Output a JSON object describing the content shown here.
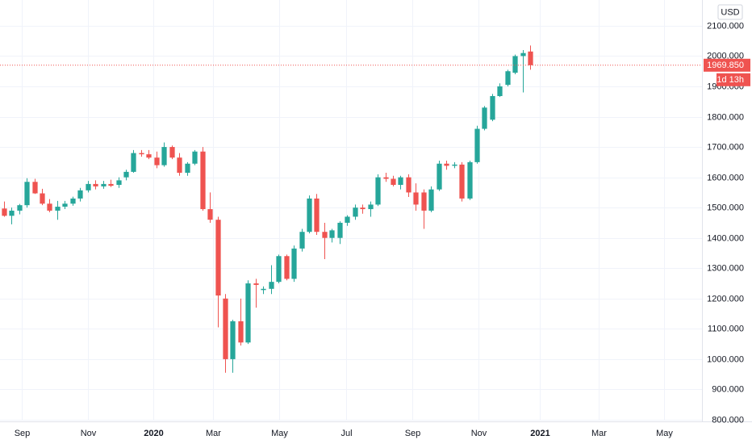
{
  "chart_data": {
    "type": "candlestick",
    "currency": "USD",
    "countdown": "1d 13h",
    "up_color": "#26a69a",
    "down_color": "#ef5350",
    "grid": true,
    "x": [
      0,
      1,
      2,
      3,
      4,
      5,
      6,
      7,
      8,
      9,
      10,
      11,
      12,
      13,
      14,
      15,
      16,
      17,
      18,
      19,
      20,
      21,
      22,
      23,
      24,
      25,
      26,
      27,
      28,
      29,
      30,
      31,
      32,
      33,
      34,
      35,
      36,
      37,
      38,
      39,
      40,
      41,
      42,
      43,
      44,
      45,
      46,
      47,
      48,
      49,
      50,
      51,
      52,
      53,
      54,
      55,
      56,
      57,
      58,
      59,
      60,
      61,
      62,
      63,
      64,
      65,
      66,
      67,
      68,
      69
    ],
    "open": [
      1497,
      1473,
      1490,
      1508,
      1585,
      1547,
      1513,
      1490,
      1503,
      1513,
      1530,
      1557,
      1578,
      1570,
      1578,
      1575,
      1600,
      1618,
      1680,
      1676,
      1665,
      1640,
      1700,
      1665,
      1615,
      1645,
      1685,
      1495,
      1460,
      1200,
      1000,
      1125,
      1055,
      1250,
      1228,
      1232,
      1255,
      1340,
      1265,
      1365,
      1420,
      1530,
      1420,
      1400,
      1400,
      1450,
      1470,
      1500,
      1495,
      1510,
      1600,
      1595,
      1575,
      1600,
      1550,
      1550,
      1490,
      1560,
      1645,
      1638,
      1642,
      1530,
      1650,
      1760,
      1790,
      1868,
      1905,
      1945,
      2000,
      2015
    ],
    "high": [
      1520,
      1500,
      1512,
      1597,
      1595,
      1562,
      1528,
      1522,
      1522,
      1536,
      1565,
      1588,
      1590,
      1588,
      1592,
      1600,
      1625,
      1690,
      1690,
      1690,
      1685,
      1715,
      1705,
      1680,
      1650,
      1690,
      1700,
      1550,
      1470,
      1215,
      1130,
      1200,
      1260,
      1265,
      1240,
      1310,
      1345,
      1345,
      1375,
      1430,
      1540,
      1545,
      1450,
      1430,
      1455,
      1475,
      1510,
      1510,
      1520,
      1610,
      1615,
      1605,
      1605,
      1610,
      1580,
      1560,
      1570,
      1655,
      1655,
      1650,
      1650,
      1655,
      1770,
      1835,
      1875,
      1910,
      1955,
      2005,
      2020,
      2035
    ],
    "low": [
      1470,
      1445,
      1478,
      1500,
      1545,
      1508,
      1485,
      1460,
      1495,
      1506,
      1520,
      1550,
      1560,
      1562,
      1568,
      1565,
      1590,
      1615,
      1668,
      1660,
      1630,
      1635,
      1660,
      1605,
      1605,
      1640,
      1490,
      1450,
      1105,
      955,
      955,
      1045,
      1050,
      1170,
      1215,
      1215,
      1250,
      1260,
      1255,
      1355,
      1415,
      1410,
      1330,
      1385,
      1380,
      1440,
      1460,
      1480,
      1470,
      1505,
      1585,
      1570,
      1560,
      1535,
      1490,
      1430,
      1485,
      1555,
      1625,
      1630,
      1520,
      1525,
      1645,
      1755,
      1785,
      1865,
      1900,
      1940,
      1880,
      1955
    ],
    "close": [
      1473,
      1490,
      1508,
      1585,
      1547,
      1513,
      1490,
      1503,
      1513,
      1530,
      1557,
      1578,
      1570,
      1578,
      1572,
      1590,
      1618,
      1680,
      1676,
      1665,
      1640,
      1700,
      1665,
      1615,
      1645,
      1685,
      1495,
      1460,
      1210,
      1000,
      1125,
      1055,
      1250,
      1245,
      1232,
      1255,
      1340,
      1265,
      1365,
      1420,
      1530,
      1420,
      1400,
      1425,
      1450,
      1470,
      1500,
      1495,
      1510,
      1600,
      1595,
      1575,
      1600,
      1550,
      1510,
      1490,
      1560,
      1645,
      1638,
      1642,
      1530,
      1650,
      1760,
      1830,
      1868,
      1900,
      1950,
      2000,
      2010,
      1969.85
    ],
    "last_price": {
      "value": 1969.85,
      "label": "1969.850"
    },
    "xlim": [
      -0.5,
      91.5
    ],
    "xticks": [
      {
        "value": 2.35,
        "label": "Sep"
      },
      {
        "value": 11.0,
        "label": "Nov"
      },
      {
        "value": 19.6,
        "label": "2020"
      },
      {
        "value": 27.4,
        "label": "Mar"
      },
      {
        "value": 36.1,
        "label": "May"
      },
      {
        "value": 44.9,
        "label": "Jul"
      },
      {
        "value": 53.5,
        "label": "Sep"
      },
      {
        "value": 62.2,
        "label": "Nov"
      },
      {
        "value": 70.2,
        "label": "2021"
      },
      {
        "value": 78.0,
        "label": "Mar"
      },
      {
        "value": 86.5,
        "label": "May"
      }
    ],
    "ylim": [
      800,
      2185
    ],
    "yticks": [
      {
        "value": 800,
        "label": "800.000"
      },
      {
        "value": 900,
        "label": "900.000"
      },
      {
        "value": 1000,
        "label": "1000.000"
      },
      {
        "value": 1100,
        "label": "1100.000"
      },
      {
        "value": 1200,
        "label": "1200.000"
      },
      {
        "value": 1300,
        "label": "1300.000"
      },
      {
        "value": 1400,
        "label": "1400.000"
      },
      {
        "value": 1500,
        "label": "1500.000"
      },
      {
        "value": 1600,
        "label": "1600.000"
      },
      {
        "value": 1700,
        "label": "1700.000"
      },
      {
        "value": 1800,
        "label": "1800.000"
      },
      {
        "value": 1900,
        "label": "1900.000"
      },
      {
        "value": 2000,
        "label": "2000.000"
      },
      {
        "value": 2100,
        "label": "2100.000"
      }
    ]
  }
}
